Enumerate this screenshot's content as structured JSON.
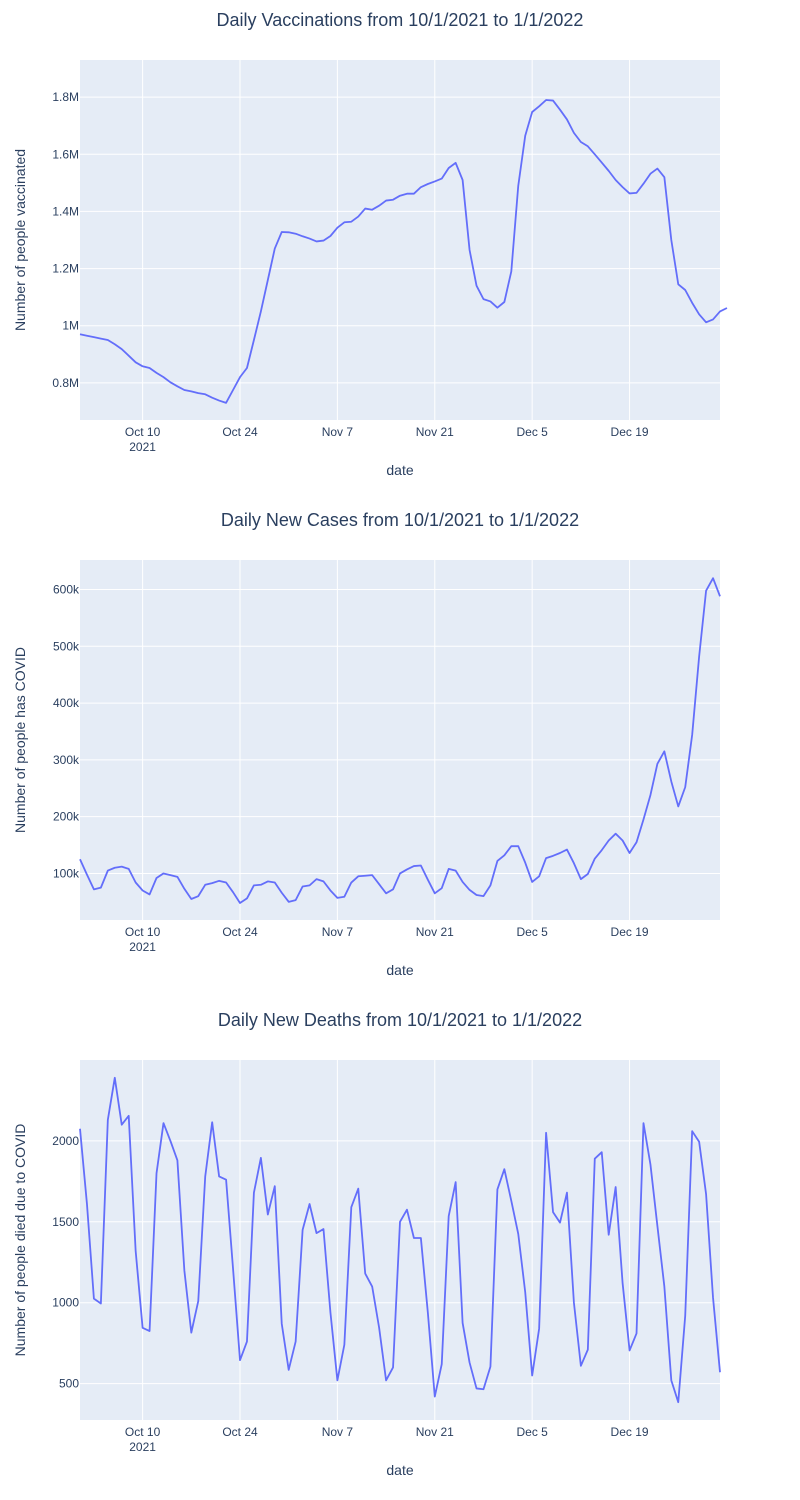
{
  "chart_data": [
    {
      "type": "line",
      "title": "Daily Vaccinations from 10/1/2021 to 1/1/2022",
      "xlabel": "date",
      "ylabel": "Number of people vaccinated",
      "x_start": "2021-10-01",
      "x_range": [
        "2021-10-01",
        "2022-01-01"
      ],
      "ylim": [
        670000,
        1930000
      ],
      "y_ticks": [
        800000,
        1000000,
        1200000,
        1400000,
        1600000,
        1800000
      ],
      "y_tick_labels": [
        "0.8M",
        "1M",
        "1.2M",
        "1.4M",
        "1.6M",
        "1.8M"
      ],
      "x_ticks": [
        "2021-10-10",
        "2021-10-24",
        "2021-11-07",
        "2021-11-21",
        "2021-12-05",
        "2021-12-19"
      ],
      "x_tick_labels": [
        "Oct 10",
        "Oct 24",
        "Nov 7",
        "Nov 21",
        "Dec 5",
        "Dec 19"
      ],
      "x_tick_sublabel": "2021",
      "color": "#636efa",
      "grid": true,
      "series": [
        {
          "values": [
            970000,
            965000,
            960000,
            955000,
            950000,
            935000,
            918000,
            895000,
            872000,
            858000,
            852000,
            835000,
            820000,
            802000,
            788000,
            775000,
            770000,
            764000,
            760000,
            748000,
            738000,
            730000,
            775000,
            820000,
            852000,
            950000,
            1050000,
            1160000,
            1270000,
            1328000,
            1327000,
            1322000,
            1313000,
            1305000,
            1295000,
            1298000,
            1314000,
            1343000,
            1362000,
            1364000,
            1382000,
            1410000,
            1406000,
            1420000,
            1438000,
            1441000,
            1455000,
            1462000,
            1462000,
            1485000,
            1496000,
            1505000,
            1515000,
            1552000,
            1570000,
            1510000,
            1265000,
            1140000,
            1093000,
            1085000,
            1063000,
            1083000,
            1190000,
            1490000,
            1665000,
            1748000,
            1768000,
            1790000,
            1788000,
            1756000,
            1722000,
            1675000,
            1643000,
            1628000,
            1600000,
            1571000,
            1542000,
            1510000,
            1485000,
            1463000,
            1465000,
            1497000,
            1532000,
            1550000,
            1520000,
            1300000,
            1145000,
            1125000,
            1080000,
            1040000,
            1012000,
            1022000,
            1050000,
            1062000
          ]
        }
      ]
    },
    {
      "type": "line",
      "title": "Daily New Cases from 10/1/2021 to 1/1/2022",
      "xlabel": "date",
      "ylabel": "Number of people has COVID",
      "x_start": "2021-10-01",
      "x_range": [
        "2021-10-01",
        "2022-01-01"
      ],
      "ylim": [
        18000,
        652000
      ],
      "y_ticks": [
        100000,
        200000,
        300000,
        400000,
        500000,
        600000
      ],
      "y_tick_labels": [
        "100k",
        "200k",
        "300k",
        "400k",
        "500k",
        "600k"
      ],
      "x_ticks": [
        "2021-10-10",
        "2021-10-24",
        "2021-11-07",
        "2021-11-21",
        "2021-12-05",
        "2021-12-19"
      ],
      "x_tick_labels": [
        "Oct 10",
        "Oct 24",
        "Nov 7",
        "Nov 21",
        "Dec 5",
        "Dec 19"
      ],
      "x_tick_sublabel": "2021",
      "color": "#636efa",
      "grid": true,
      "series": [
        {
          "values": [
            125000,
            98000,
            72000,
            75000,
            105000,
            110000,
            112000,
            108000,
            84000,
            70000,
            63000,
            92000,
            100000,
            97000,
            94000,
            73000,
            55000,
            60000,
            80000,
            83000,
            87000,
            84000,
            67000,
            48000,
            56000,
            79000,
            80000,
            86000,
            84000,
            66000,
            50000,
            53000,
            77000,
            79000,
            90000,
            86000,
            70000,
            57000,
            59000,
            84000,
            95000,
            96000,
            97000,
            81000,
            65000,
            72000,
            100000,
            107000,
            113000,
            114000,
            89000,
            65000,
            74000,
            108000,
            105000,
            85000,
            71000,
            62000,
            60000,
            79000,
            122000,
            132000,
            148000,
            148000,
            119000,
            85000,
            95000,
            127000,
            131000,
            136000,
            142000,
            118000,
            90000,
            99000,
            126000,
            141000,
            158000,
            170000,
            158000,
            136000,
            155000,
            195000,
            238000,
            293000,
            315000,
            262000,
            218000,
            252000,
            344000,
            482000,
            598000,
            620000,
            588000
          ]
        }
      ]
    },
    {
      "type": "line",
      "title": "Daily New Deaths from 10/1/2021 to 1/1/2022",
      "xlabel": "date",
      "ylabel": "Number of people died due to COVID",
      "x_start": "2021-10-01",
      "x_range": [
        "2021-10-01",
        "2022-01-01"
      ],
      "ylim": [
        275,
        2500
      ],
      "y_ticks": [
        500,
        1000,
        1500,
        2000
      ],
      "y_tick_labels": [
        "500",
        "1000",
        "1500",
        "2000"
      ],
      "x_ticks": [
        "2021-10-10",
        "2021-10-24",
        "2021-11-07",
        "2021-11-21",
        "2021-12-05",
        "2021-12-19"
      ],
      "x_tick_labels": [
        "Oct 10",
        "Oct 24",
        "Nov 7",
        "Nov 21",
        "Dec 5",
        "Dec 19"
      ],
      "x_tick_sublabel": "2021",
      "color": "#636efa",
      "grid": true,
      "series": [
        {
          "values": [
            2075,
            1610,
            1025,
            995,
            2130,
            2390,
            2100,
            2155,
            1320,
            845,
            825,
            1800,
            2110,
            2000,
            1880,
            1200,
            815,
            1010,
            1780,
            2115,
            1780,
            1760,
            1210,
            645,
            760,
            1680,
            1895,
            1545,
            1720,
            870,
            585,
            760,
            1450,
            1610,
            1430,
            1455,
            940,
            520,
            740,
            1590,
            1705,
            1180,
            1100,
            845,
            520,
            600,
            1500,
            1575,
            1400,
            1400,
            940,
            420,
            620,
            1535,
            1745,
            875,
            630,
            470,
            465,
            605,
            1700,
            1825,
            1630,
            1425,
            1065,
            550,
            840,
            2050,
            1560,
            1495,
            1680,
            1000,
            610,
            710,
            1890,
            1930,
            1420,
            1715,
            1120,
            705,
            810,
            2110,
            1855,
            1475,
            1100,
            520,
            385,
            920,
            2060,
            1995,
            1670,
            1030,
            570
          ]
        }
      ]
    }
  ]
}
